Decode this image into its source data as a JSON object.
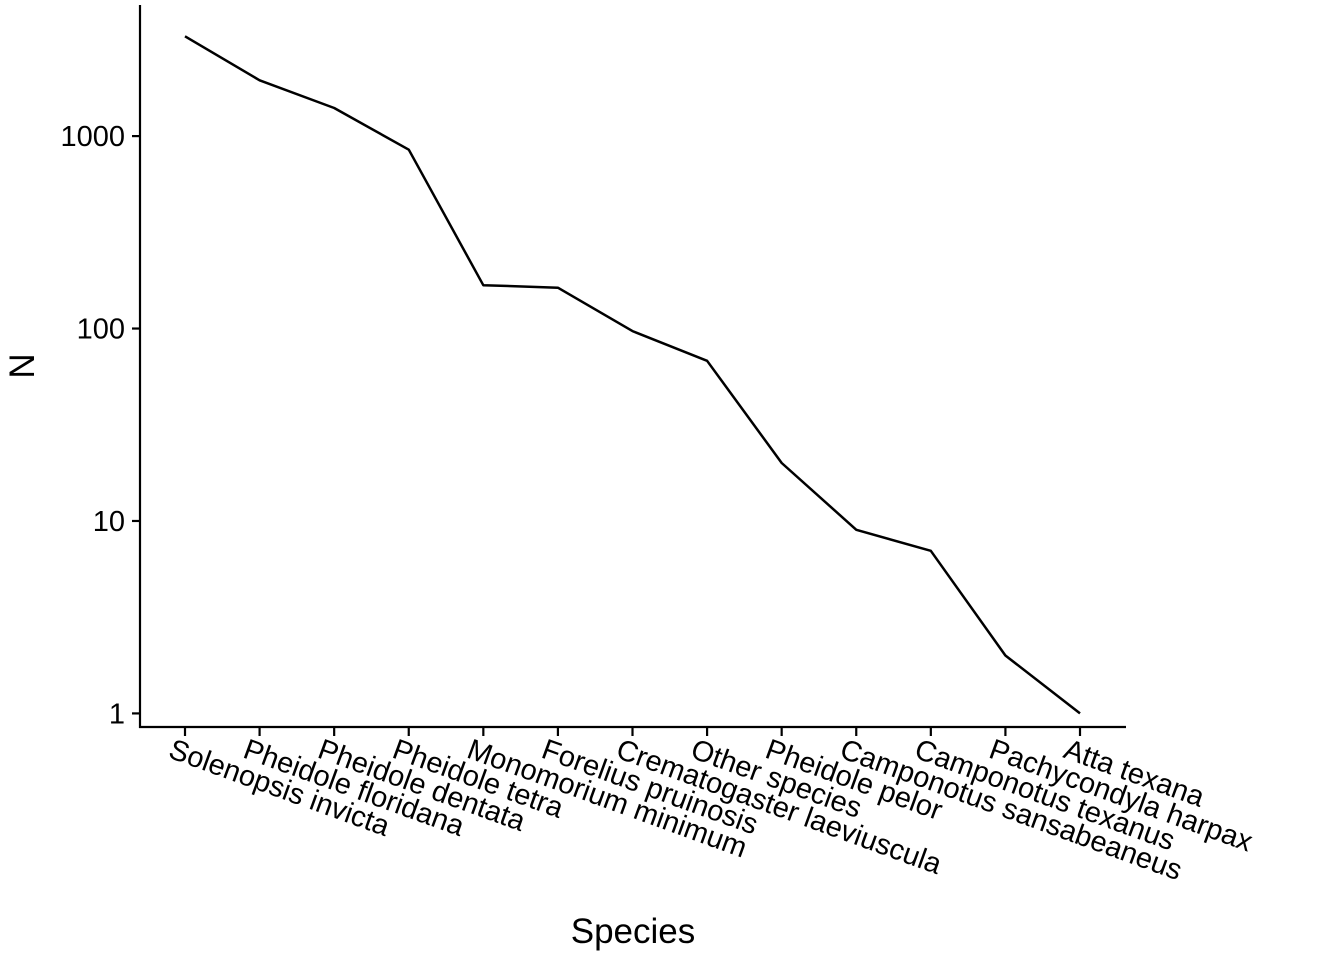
{
  "chart_data": {
    "type": "line",
    "xlabel": "Species",
    "ylabel": "N",
    "yscale": "log10",
    "ylim": [
      0.85,
      4800
    ],
    "yticks": [
      1,
      10,
      100,
      1000
    ],
    "ytick_labels": [
      "1",
      "10",
      "100",
      "1000"
    ],
    "grid": false,
    "legend": "none",
    "line_color": "#000000",
    "categories": [
      "Solenopsis invicta",
      "Pheidole floridana",
      "Pheidole dentata",
      "Pheidole tetra",
      "Monomorium minimum",
      "Forelius pruinosis",
      "Crematogaster laeviuscula",
      "Other species",
      "Pheidole pelor",
      "Camponotus sansabeaneus",
      "Camponotus texanus",
      "Pachycondyla harpax",
      "Atta texana"
    ],
    "values": [
      3300,
      1950,
      1400,
      850,
      168,
      163,
      97,
      68,
      20,
      9,
      7,
      2,
      1
    ]
  }
}
